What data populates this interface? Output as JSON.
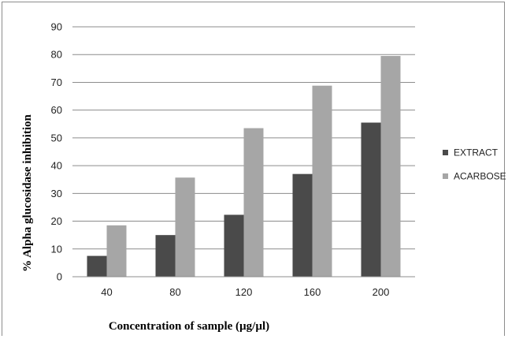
{
  "chart_data": {
    "type": "bar",
    "categories": [
      "40",
      "80",
      "120",
      "160",
      "200"
    ],
    "series": [
      {
        "name": "EXTRACT",
        "values": [
          7.5,
          15,
          22.3,
          37,
          55.5
        ],
        "color": "#4a4a4a"
      },
      {
        "name": "ACARBOSE",
        "values": [
          18.5,
          35.7,
          53.5,
          68.8,
          79.5
        ],
        "color": "#a6a6a6"
      }
    ],
    "title": "",
    "xlabel": "Concentration of sample (µg/µl)",
    "ylabel": "% Alpha glucosidase inhibition",
    "ylim": [
      0,
      90
    ],
    "yticks": [
      0,
      10,
      20,
      30,
      40,
      50,
      60,
      70,
      80,
      90
    ],
    "grid": true,
    "legend_position": "right"
  }
}
